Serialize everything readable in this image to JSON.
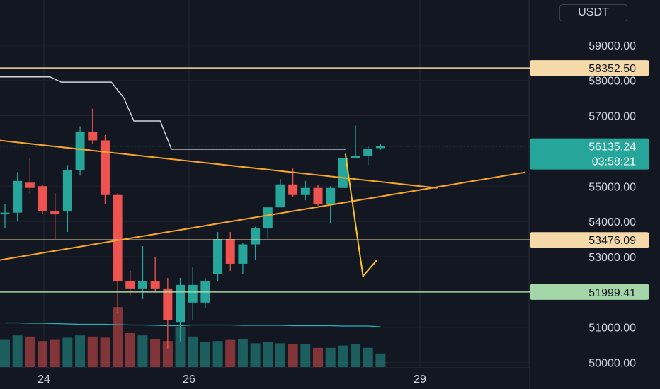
{
  "currency": "USDT",
  "chart_data": {
    "type": "candlestick",
    "y_axis": {
      "ticks": [
        "59000.00",
        "58000.00",
        "57000.00",
        "55000.00",
        "54000.00",
        "53000.00",
        "51000.00",
        "50000.00"
      ],
      "ylim": [
        49600,
        60000
      ]
    },
    "x_axis": {
      "ticks": [
        "24",
        "26",
        "29"
      ]
    },
    "candles": [
      {
        "o": 54200,
        "h": 54500,
        "l": 53800,
        "c": 54250
      },
      {
        "o": 54250,
        "h": 55400,
        "l": 54000,
        "c": 55150
      },
      {
        "o": 55100,
        "h": 55800,
        "l": 54800,
        "c": 54950
      },
      {
        "o": 55000,
        "h": 55050,
        "l": 54200,
        "c": 54300
      },
      {
        "o": 54300,
        "h": 54800,
        "l": 53500,
        "c": 54200
      },
      {
        "o": 54300,
        "h": 55600,
        "l": 53700,
        "c": 55450
      },
      {
        "o": 55450,
        "h": 56700,
        "l": 55300,
        "c": 56550
      },
      {
        "o": 56550,
        "h": 57200,
        "l": 56200,
        "c": 56300
      },
      {
        "o": 56300,
        "h": 56450,
        "l": 54500,
        "c": 54750
      },
      {
        "o": 54750,
        "h": 54800,
        "l": 51400,
        "c": 52300
      },
      {
        "o": 52300,
        "h": 52600,
        "l": 51900,
        "c": 52100
      },
      {
        "o": 52100,
        "h": 53300,
        "l": 51800,
        "c": 52300
      },
      {
        "o": 52300,
        "h": 53000,
        "l": 52000,
        "c": 52100
      },
      {
        "o": 52100,
        "h": 52400,
        "l": 50400,
        "c": 51200
      },
      {
        "o": 51150,
        "h": 52400,
        "l": 50600,
        "c": 52200
      },
      {
        "o": 51700,
        "h": 52700,
        "l": 51200,
        "c": 52200
      },
      {
        "o": 51700,
        "h": 52400,
        "l": 51550,
        "c": 52300
      },
      {
        "o": 52500,
        "h": 53700,
        "l": 52300,
        "c": 53500
      },
      {
        "o": 53500,
        "h": 53700,
        "l": 52600,
        "c": 52800
      },
      {
        "o": 52800,
        "h": 53400,
        "l": 52500,
        "c": 53350
      },
      {
        "o": 53350,
        "h": 53850,
        "l": 52900,
        "c": 53800
      },
      {
        "o": 53800,
        "h": 54300,
        "l": 53500,
        "c": 54400
      },
      {
        "o": 54400,
        "h": 55200,
        "l": 54400,
        "c": 55050
      },
      {
        "o": 55050,
        "h": 55500,
        "l": 54700,
        "c": 54750
      },
      {
        "o": 54750,
        "h": 55150,
        "l": 54600,
        "c": 54950
      },
      {
        "o": 54950,
        "h": 55050,
        "l": 54450,
        "c": 54500
      },
      {
        "o": 54500,
        "h": 55000,
        "l": 53950,
        "c": 54950
      },
      {
        "o": 54950,
        "h": 55800,
        "l": 55000,
        "c": 55800
      },
      {
        "o": 55800,
        "h": 56720,
        "l": 55800,
        "c": 55850
      },
      {
        "o": 55850,
        "h": 56150,
        "l": 55600,
        "c": 56050
      },
      {
        "o": 56080,
        "h": 56200,
        "l": 56030,
        "c": 56135
      }
    ],
    "volume": [
      24,
      28,
      27,
      23,
      24,
      26,
      28,
      27,
      26,
      53,
      30,
      28,
      25,
      23,
      35,
      27,
      22,
      23,
      24,
      25,
      21,
      22,
      21,
      20,
      20,
      17,
      17,
      19,
      20,
      17,
      12
    ],
    "volume_ma": [
      [
        0,
        51
      ],
      [
        1,
        51
      ],
      [
        2,
        50
      ],
      [
        3,
        50
      ],
      [
        4,
        49
      ],
      [
        5,
        48
      ],
      [
        6,
        47
      ],
      [
        7,
        47
      ],
      [
        8,
        47
      ],
      [
        9,
        46
      ],
      [
        10,
        45
      ],
      [
        11,
        45
      ],
      [
        12,
        44
      ],
      [
        13,
        43
      ],
      [
        14,
        43
      ],
      [
        15,
        45
      ],
      [
        16,
        45
      ],
      [
        17,
        45
      ],
      [
        18,
        45
      ],
      [
        19,
        44
      ],
      [
        20,
        44
      ],
      [
        21,
        44
      ],
      [
        22,
        44
      ],
      [
        23,
        43
      ],
      [
        24,
        43
      ],
      [
        25,
        43
      ],
      [
        26,
        43
      ],
      [
        27,
        42
      ],
      [
        28,
        42
      ],
      [
        29,
        42
      ],
      [
        30,
        40
      ]
    ],
    "horizontal_levels": [
      {
        "label": "58352.50",
        "price": 58352.5,
        "color": "#f5d9a8",
        "text_color": "#131722"
      },
      {
        "label": "53476.09",
        "price": 53476.09,
        "color": "#f5d9a8",
        "text_color": "#131722"
      },
      {
        "label": "51999.41",
        "price": 51999.41,
        "color": "#a5d6a7",
        "text_color": "#131722"
      }
    ],
    "last_price": {
      "label": "56135.24",
      "countdown": "03:58:21",
      "price": 56135.24,
      "color": "#26a69a"
    },
    "trendlines": [
      {
        "from": [
          -0.5,
          56300
        ],
        "to": [
          34.5,
          54950
        ],
        "color": "#f7a62a"
      },
      {
        "from": [
          -0.5,
          52900
        ],
        "to": [
          41.5,
          55390
        ],
        "color": "#f7a62a"
      },
      {
        "from": [
          27.2,
          55900
        ],
        "to": [
          28.6,
          52450
        ],
        "color": "#f7c52a"
      },
      {
        "from": [
          28.6,
          52450
        ],
        "to": [
          29.7,
          52900
        ],
        "color": "#f7c52a"
      }
    ],
    "step_line": [
      [
        -0.5,
        58100
      ],
      [
        3.6,
        58100
      ],
      [
        4.5,
        57950
      ],
      [
        8.5,
        57950
      ],
      [
        9.5,
        57500
      ],
      [
        10.3,
        56850
      ],
      [
        12.4,
        56850
      ],
      [
        13.3,
        56050
      ],
      [
        27.2,
        56050
      ]
    ]
  }
}
